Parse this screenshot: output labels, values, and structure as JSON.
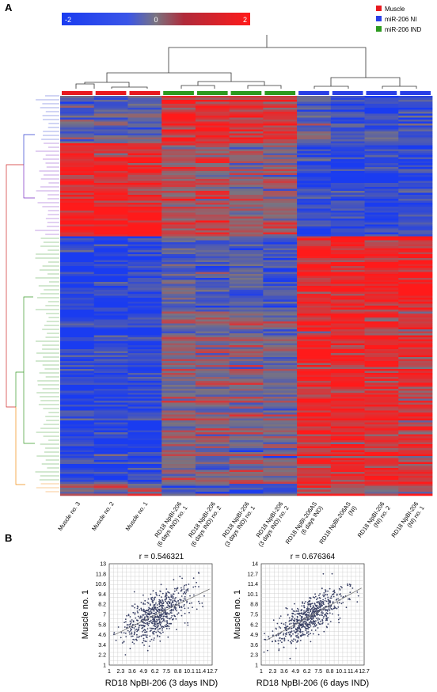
{
  "panels": {
    "a": "A",
    "b": "B"
  },
  "colors": {
    "muscle": "#e8191f",
    "ni": "#2a3fe6",
    "ind": "#2c9a1f",
    "high": "#ff1a1a",
    "low": "#1a3cf0",
    "mid": "#7a7480",
    "dendro_blue": "#2f3fd0",
    "dendro_purple": "#7a2bc2",
    "dendro_green": "#3a9a2a",
    "dendro_orange": "#f08a10",
    "dendro_red": "#d02a2a",
    "scatter_point": "#3b4266"
  },
  "chart_data": [
    {
      "type": "heatmap",
      "colorbar": {
        "min_label": "-2",
        "mid_label": "0",
        "max_label": "2",
        "range": [
          -2,
          2
        ]
      },
      "legend": [
        {
          "label": "Muscle",
          "color": "#e8191f"
        },
        {
          "label": "miR-206 NI",
          "color": "#2a3fe6"
        },
        {
          "label": "miR-206 IND",
          "color": "#2c9a1f"
        }
      ],
      "columns": [
        {
          "label": "Muscle no. 3",
          "group": "muscle"
        },
        {
          "label": "Muscle no. 2",
          "group": "muscle"
        },
        {
          "label": "Muscle no. 1",
          "group": "muscle"
        },
        {
          "label": "RD18 NpBI-206 (6 days IND) no. 1",
          "group": "ind"
        },
        {
          "label": "RD18 NpBI-206 (6 days IND) no. 2",
          "group": "ind"
        },
        {
          "label": "RD18 NpBI-206 (3 days IND) no. 1",
          "group": "ind"
        },
        {
          "label": "RD18 NpBI-206 (3 days IND) no. 2",
          "group": "ind"
        },
        {
          "label": "RD18 NpBI-206AS (6 days IND)",
          "group": "ni"
        },
        {
          "label": "RD18 NpBI-206AS (NI)",
          "group": "ni"
        },
        {
          "label": "RD18 NpBI-206 (NI) no. 2",
          "group": "ni"
        },
        {
          "label": "RD18 NpBI-206 (NI) no. 1",
          "group": "ni"
        }
      ],
      "row_blocks": [
        {
          "cluster": "blue",
          "share": 0.115,
          "pattern": [
            -0.6,
            -0.6,
            -0.6,
            1.6,
            1.6,
            1.3,
            1.3,
            -0.4,
            -1.2,
            -1.2,
            -1.2
          ]
        },
        {
          "cluster": "purple",
          "share": 0.235,
          "pattern": [
            1.7,
            1.7,
            1.7,
            0.6,
            0.6,
            0.2,
            0.2,
            -1.5,
            -1.6,
            -1.6,
            -1.6
          ]
        },
        {
          "cluster": "green",
          "share": 0.18,
          "pattern": [
            -1.7,
            -1.7,
            -1.7,
            -0.6,
            -0.8,
            -0.7,
            -1.0,
            1.6,
            1.8,
            1.8,
            1.8
          ]
        },
        {
          "cluster": "green",
          "share": 0.44,
          "pattern": [
            -1.7,
            -1.7,
            -1.7,
            0.1,
            0.0,
            0.1,
            -0.2,
            1.5,
            1.5,
            1.5,
            1.2
          ]
        },
        {
          "cluster": "orange",
          "share": 0.03,
          "pattern": [
            0.3,
            0.3,
            0.3,
            -1.2,
            -1.2,
            -1.2,
            -1.2,
            0.8,
            0.5,
            0.5,
            0.5
          ]
        }
      ]
    },
    {
      "type": "scatter",
      "title": "r = 0.546321",
      "xlabel": "RD18 NpBI-206 (3 days IND)",
      "ylabel": "Muscle no. 1",
      "xlim": [
        1,
        12.7
      ],
      "ylim": [
        1,
        13
      ],
      "x_ticks": [
        "1",
        "2.3",
        "3.6",
        "4.9",
        "6.2",
        "7.5",
        "8.8",
        "10.1",
        "11.4",
        "12.7"
      ],
      "y_ticks": [
        "1",
        "2.2",
        "3.4",
        "4.6",
        "5.8",
        "7",
        "8.2",
        "9.4",
        "10.6",
        "11.8",
        "13"
      ],
      "r": 0.546321,
      "trend": {
        "slope": 0.5,
        "intercept": 3.8
      },
      "point_cloud": {
        "center": [
          6.4,
          7.0
        ],
        "spread": [
          1.9,
          1.5
        ],
        "n": 650
      }
    },
    {
      "type": "scatter",
      "title": "r = 0.676364",
      "xlabel": "RD18 NpBI-206 (6 days IND)",
      "ylabel": "Muscle no. 1",
      "xlim": [
        1,
        12.7
      ],
      "ylim": [
        1,
        14
      ],
      "x_ticks": [
        "1",
        "2.3",
        "3.6",
        "4.9",
        "6.2",
        "7.5",
        "8.8",
        "10.1",
        "11.4",
        "12.7"
      ],
      "y_ticks": [
        "1",
        "2.3",
        "3.6",
        "4.9",
        "6.2",
        "7.5",
        "8.8",
        "10.1",
        "11.4",
        "12.7",
        "14"
      ],
      "r": 0.676364,
      "trend": {
        "slope": 0.62,
        "intercept": 3.2
      },
      "point_cloud": {
        "center": [
          6.4,
          7.2
        ],
        "spread": [
          1.9,
          1.6
        ],
        "n": 650
      }
    }
  ]
}
